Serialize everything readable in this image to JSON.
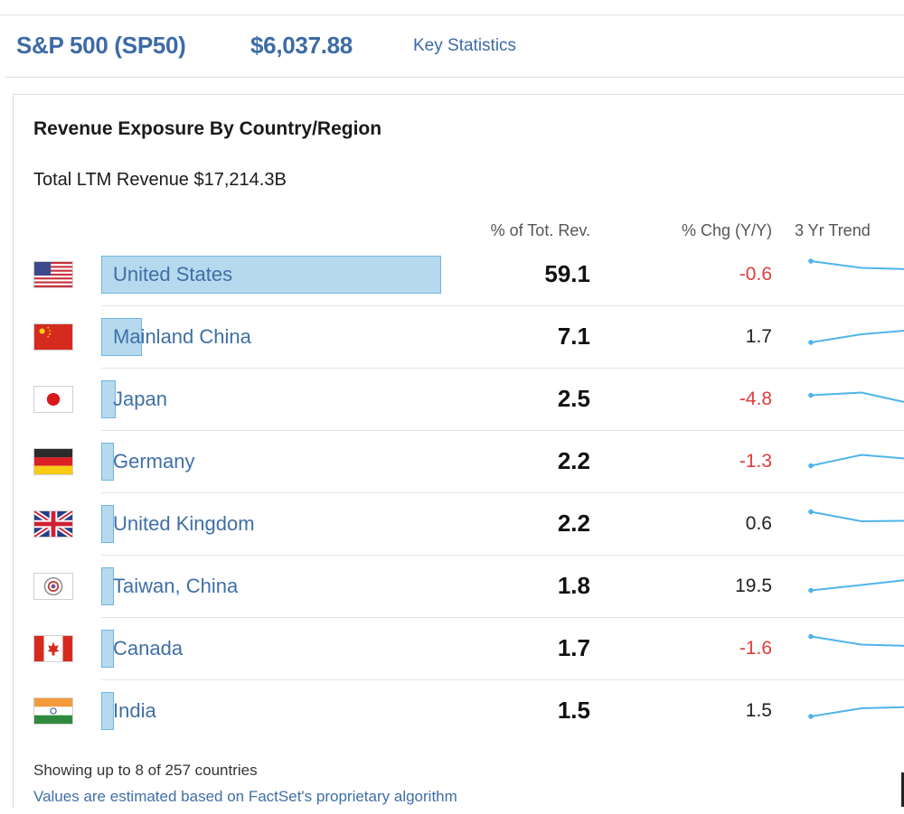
{
  "header": {
    "ticker": "S&P 500 (SP50)",
    "price": "$6,037.88",
    "link": "Key Statistics"
  },
  "panel": {
    "title": "Revenue Exposure By Country/Region",
    "total": "Total LTM Revenue $17,214.3B",
    "columns": {
      "pct": "% of Tot. Rev.",
      "chg": "% Chg (Y/Y)",
      "trend": "3 Yr Trend"
    }
  },
  "colors": {
    "bar_fill": "#b6d9ee",
    "bar_border": "#6fb3df",
    "spark": "#4fb4ea",
    "negative": "#e03c3c",
    "link": "#3f6fa6"
  },
  "rows": [
    {
      "flag": "us-flag-icon",
      "country": "United States",
      "pct": "59.1",
      "pct_num": 59.1,
      "chg": "-0.6",
      "neg": true,
      "trend": [
        1.0,
        0.75,
        0.7
      ]
    },
    {
      "flag": "china-flag-icon",
      "country": "Mainland China",
      "pct": "7.1",
      "pct_num": 7.1,
      "chg": "1.7",
      "neg": false,
      "trend": [
        0.3,
        0.6,
        0.75
      ]
    },
    {
      "flag": "japan-flag-icon",
      "country": "Japan",
      "pct": "2.5",
      "pct_num": 2.5,
      "chg": "-4.8",
      "neg": true,
      "trend": [
        0.65,
        0.75,
        0.35
      ]
    },
    {
      "flag": "germany-flag-icon",
      "country": "Germany",
      "pct": "2.2",
      "pct_num": 2.2,
      "chg": "-1.3",
      "neg": true,
      "trend": [
        0.35,
        0.75,
        0.6
      ]
    },
    {
      "flag": "uk-flag-icon",
      "country": "United Kingdom",
      "pct": "2.2",
      "pct_num": 2.2,
      "chg": "0.6",
      "neg": false,
      "trend": [
        0.95,
        0.6,
        0.62
      ]
    },
    {
      "flag": "taiwan-flag-icon",
      "country": "Taiwan, China",
      "pct": "1.8",
      "pct_num": 1.8,
      "chg": "19.5",
      "neg": false,
      "trend": [
        0.35,
        0.55,
        0.75
      ]
    },
    {
      "flag": "canada-flag-icon",
      "country": "Canada",
      "pct": "1.7",
      "pct_num": 1.7,
      "chg": "-1.6",
      "neg": true,
      "trend": [
        0.95,
        0.65,
        0.6
      ]
    },
    {
      "flag": "india-flag-icon",
      "country": "India",
      "pct": "1.5",
      "pct_num": 1.5,
      "chg": "1.5",
      "neg": false,
      "trend": [
        0.3,
        0.6,
        0.65
      ]
    }
  ],
  "footer": {
    "showing": "Showing up to 8 of 257 countries",
    "note": "Values are estimated based on FactSet's proprietary algorithm"
  }
}
